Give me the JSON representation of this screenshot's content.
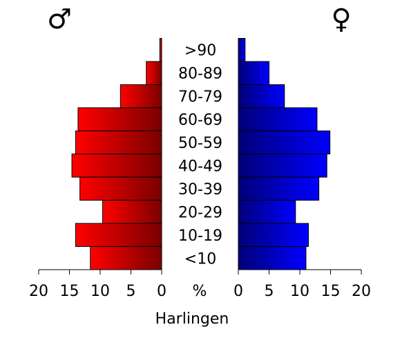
{
  "chart_data": {
    "type": "bar",
    "title": "",
    "xlabel": "Harlingen",
    "unit_label": "%",
    "male_symbol": "♂",
    "female_symbol": "♀",
    "categories": [
      ">90",
      "80-89",
      "70-79",
      "60-69",
      "50-59",
      "40-49",
      "30-39",
      "20-29",
      "10-19",
      "<10"
    ],
    "xlim": [
      0,
      20
    ],
    "ticks": [
      "0",
      "5",
      "10",
      "15",
      "20"
    ],
    "series": [
      {
        "values": [
          0.3,
          2.5,
          6.7,
          13.6,
          14.0,
          14.6,
          13.3,
          9.6,
          14.0,
          11.6
        ],
        "color_dark": "#7a0000",
        "color_light": "#ff0000"
      },
      {
        "values": [
          1.1,
          5.0,
          7.5,
          12.8,
          14.9,
          14.4,
          13.1,
          9.3,
          11.4,
          11.0
        ],
        "color_dark": "#000077",
        "color_light": "#0000ff"
      }
    ]
  }
}
